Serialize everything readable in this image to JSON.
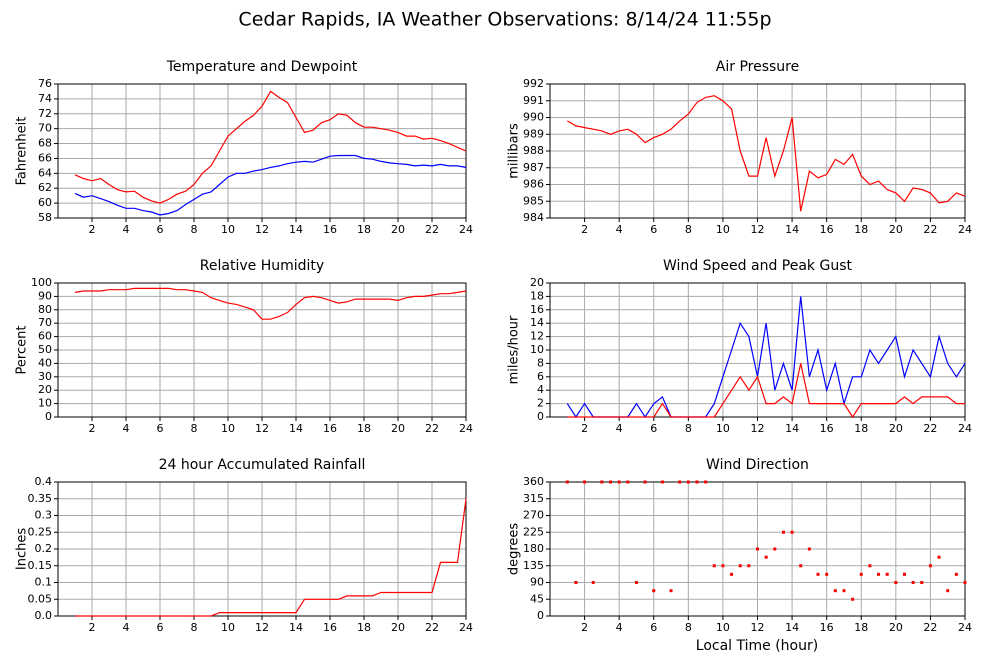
{
  "title": "Cedar Rapids, IA Weather Observations: 8/14/24 11:55p",
  "x_axis_label": "Local Time (hour)",
  "chart_data": [
    {
      "type": "line",
      "title": "Temperature and Dewpoint",
      "y_label": "Fahrenheit",
      "xlim": [
        0,
        24
      ],
      "xticks": [
        2,
        4,
        6,
        8,
        10,
        12,
        14,
        16,
        18,
        20,
        22,
        24
      ],
      "ylim": [
        58,
        76
      ],
      "yticks": [
        58,
        60,
        62,
        64,
        66,
        68,
        70,
        72,
        74,
        76
      ],
      "grid": true,
      "x": [
        1,
        1.5,
        2,
        2.5,
        3,
        3.5,
        4,
        4.5,
        5,
        5.5,
        6,
        6.5,
        7,
        7.5,
        8,
        8.5,
        9,
        9.5,
        10,
        10.5,
        11,
        11.5,
        12,
        12.5,
        13,
        13.5,
        14,
        14.5,
        15,
        15.5,
        16,
        16.5,
        17,
        17.5,
        18,
        18.5,
        19,
        19.5,
        20,
        20.5,
        21,
        21.5,
        22,
        22.5,
        23,
        23.5,
        24
      ],
      "series": [
        {
          "color": "#ff0000",
          "values": [
            63.8,
            63.3,
            63,
            63.3,
            62.5,
            61.8,
            61.5,
            61.6,
            60.8,
            60.3,
            60,
            60.5,
            61.2,
            61.6,
            62.5,
            64,
            65,
            67,
            69,
            70,
            71,
            71.8,
            73,
            75,
            74.2,
            73.5,
            71.5,
            69.5,
            69.8,
            70.8,
            71.2,
            72,
            71.8,
            70.8,
            70.2,
            70.2,
            70,
            69.8,
            69.5,
            69,
            69,
            68.6,
            68.7,
            68.4,
            68,
            67.5,
            67
          ]
        },
        {
          "color": "#0000ff",
          "values": [
            61.3,
            60.8,
            61,
            60.6,
            60.2,
            59.7,
            59.3,
            59.3,
            59,
            58.8,
            58.4,
            58.6,
            59,
            59.8,
            60.5,
            61.2,
            61.5,
            62.5,
            63.5,
            64,
            64,
            64.3,
            64.5,
            64.8,
            65,
            65.3,
            65.5,
            65.6,
            65.5,
            65.9,
            66.3,
            66.4,
            66.4,
            66.4,
            66,
            65.9,
            65.6,
            65.4,
            65.3,
            65.2,
            65,
            65.1,
            65,
            65.2,
            65,
            65,
            64.8
          ]
        }
      ]
    },
    {
      "type": "line",
      "title": "Air Pressure",
      "y_label": "millibars",
      "xlim": [
        0,
        24
      ],
      "xticks": [
        2,
        4,
        6,
        8,
        10,
        12,
        14,
        16,
        18,
        20,
        22,
        24
      ],
      "ylim": [
        984,
        992
      ],
      "yticks": [
        984,
        985,
        986,
        987,
        988,
        989,
        990,
        991,
        992
      ],
      "grid": true,
      "x": [
        1,
        1.5,
        2,
        2.5,
        3,
        3.5,
        4,
        4.5,
        5,
        5.5,
        6,
        6.5,
        7,
        7.5,
        8,
        8.5,
        9,
        9.5,
        10,
        10.5,
        11,
        11.5,
        12,
        12.5,
        13,
        13.5,
        14,
        14.5,
        15,
        15.5,
        16,
        16.5,
        17,
        17.5,
        18,
        18.5,
        19,
        19.5,
        20,
        20.5,
        21,
        21.5,
        22,
        22.5,
        23,
        23.5,
        24
      ],
      "series": [
        {
          "color": "#ff0000",
          "values": [
            989.8,
            989.5,
            989.4,
            989.3,
            989.2,
            989,
            989.2,
            989.3,
            989,
            988.5,
            988.8,
            989,
            989.3,
            989.8,
            990.2,
            990.9,
            991.2,
            991.3,
            991,
            990.5,
            988,
            986.5,
            986.5,
            988.8,
            986.5,
            988,
            990,
            984.4,
            986.8,
            986.4,
            986.6,
            987.5,
            987.2,
            987.8,
            986.5,
            986,
            986.2,
            985.7,
            985.5,
            985,
            985.8,
            985.7,
            985.5,
            984.9,
            985,
            985.5,
            985.3
          ]
        }
      ]
    },
    {
      "type": "line",
      "title": "Relative Humidity",
      "y_label": "Percent",
      "xlim": [
        0,
        24
      ],
      "xticks": [
        2,
        4,
        6,
        8,
        10,
        12,
        14,
        16,
        18,
        20,
        22,
        24
      ],
      "ylim": [
        0,
        100
      ],
      "yticks": [
        0,
        10,
        20,
        30,
        40,
        50,
        60,
        70,
        80,
        90,
        100
      ],
      "grid": true,
      "x": [
        1,
        1.5,
        2,
        2.5,
        3,
        3.5,
        4,
        4.5,
        5,
        5.5,
        6,
        6.5,
        7,
        7.5,
        8,
        8.5,
        9,
        9.5,
        10,
        10.5,
        11,
        11.5,
        12,
        12.5,
        13,
        13.5,
        14,
        14.5,
        15,
        15.5,
        16,
        16.5,
        17,
        17.5,
        18,
        18.5,
        19,
        19.5,
        20,
        20.5,
        21,
        21.5,
        22,
        22.5,
        23,
        23.5,
        24
      ],
      "series": [
        {
          "color": "#ff0000",
          "values": [
            93,
            94,
            94,
            94,
            95,
            95,
            95,
            96,
            96,
            96,
            96,
            96,
            95,
            95,
            94,
            93,
            89,
            87,
            85,
            84,
            82,
            80,
            73,
            73,
            75,
            78,
            84,
            89,
            90,
            89,
            87,
            85,
            86,
            88,
            88,
            88,
            88,
            88,
            87,
            89,
            90,
            90,
            91,
            92,
            92,
            93,
            94
          ]
        }
      ]
    },
    {
      "type": "line",
      "title": "Wind Speed and Peak Gust",
      "y_label": "miles/hour",
      "xlim": [
        0,
        24
      ],
      "xticks": [
        2,
        4,
        6,
        8,
        10,
        12,
        14,
        16,
        18,
        20,
        22,
        24
      ],
      "ylim": [
        0,
        20
      ],
      "yticks": [
        0,
        2,
        4,
        6,
        8,
        10,
        12,
        14,
        16,
        18,
        20
      ],
      "grid": true,
      "x": [
        1,
        1.5,
        2,
        2.5,
        3,
        3.5,
        4,
        4.5,
        5,
        5.5,
        6,
        6.5,
        7,
        7.5,
        8,
        8.5,
        9,
        9.5,
        10,
        10.5,
        11,
        11.5,
        12,
        12.5,
        13,
        13.5,
        14,
        14.5,
        15,
        15.5,
        16,
        16.5,
        17,
        17.5,
        18,
        18.5,
        19,
        19.5,
        20,
        20.5,
        21,
        21.5,
        22,
        22.5,
        23,
        23.5,
        24
      ],
      "series": [
        {
          "color": "#0000ff",
          "values": [
            2,
            0,
            2,
            0,
            0,
            0,
            0,
            0,
            2,
            0,
            2,
            3,
            0,
            0,
            0,
            0,
            0,
            2,
            6,
            10,
            14,
            12,
            6,
            14,
            4,
            8,
            4,
            18,
            6,
            10,
            4,
            8,
            2,
            6,
            6,
            10,
            8,
            10,
            12,
            6,
            10,
            8,
            6,
            12,
            8,
            6,
            8
          ]
        },
        {
          "color": "#ff0000",
          "values": [
            0,
            0,
            0,
            0,
            0,
            0,
            0,
            0,
            0,
            0,
            0,
            2,
            0,
            0,
            0,
            0,
            0,
            0,
            2,
            4,
            6,
            4,
            6,
            2,
            2,
            3,
            2,
            8,
            2,
            2,
            2,
            2,
            2,
            0,
            2,
            2,
            2,
            2,
            2,
            3,
            2,
            3,
            3,
            3,
            3,
            2,
            2
          ]
        }
      ]
    },
    {
      "type": "line",
      "title": "24 hour Accumulated Rainfall",
      "y_label": "Inches",
      "xlim": [
        0,
        24
      ],
      "xticks": [
        2,
        4,
        6,
        8,
        10,
        12,
        14,
        16,
        18,
        20,
        22,
        24
      ],
      "ylim": [
        0,
        0.4
      ],
      "yticks": [
        {
          "value": 0,
          "label": "0.0"
        },
        0.05,
        0.1,
        0.15,
        0.2,
        0.25,
        0.3,
        0.35,
        0.4
      ],
      "grid": true,
      "x": [
        1,
        1.5,
        2,
        2.5,
        3,
        3.5,
        4,
        4.5,
        5,
        5.5,
        6,
        6.5,
        7,
        7.5,
        8,
        8.5,
        9,
        9.5,
        10,
        10.5,
        11,
        11.5,
        12,
        12.5,
        13,
        13.5,
        14,
        14.5,
        15,
        15.5,
        16,
        16.5,
        17,
        17.5,
        18,
        18.5,
        19,
        19.5,
        20,
        20.5,
        21,
        21.5,
        22,
        22.5,
        23,
        23.5,
        24
      ],
      "series": [
        {
          "color": "#ff0000",
          "values": [
            0,
            0,
            0,
            0,
            0,
            0,
            0,
            0,
            0,
            0,
            0,
            0,
            0,
            0,
            0,
            0,
            0,
            0.01,
            0.01,
            0.01,
            0.01,
            0.01,
            0.01,
            0.01,
            0.01,
            0.01,
            0.01,
            0.05,
            0.05,
            0.05,
            0.05,
            0.05,
            0.06,
            0.06,
            0.06,
            0.06,
            0.07,
            0.07,
            0.07,
            0.07,
            0.07,
            0.07,
            0.07,
            0.16,
            0.16,
            0.16,
            0.35
          ]
        }
      ]
    },
    {
      "type": "scatter",
      "title": "Wind Direction",
      "y_label": "degrees",
      "xlim": [
        0,
        24
      ],
      "xticks": [
        2,
        4,
        6,
        8,
        10,
        12,
        14,
        16,
        18,
        20,
        22,
        24
      ],
      "ylim": [
        0,
        360
      ],
      "yticks": [
        0,
        45,
        90,
        135,
        180,
        225,
        270,
        315,
        360
      ],
      "grid": true,
      "x": [
        1,
        1.5,
        2,
        2.5,
        3,
        3.5,
        4,
        4.5,
        5,
        5.5,
        6,
        6.5,
        7,
        7.5,
        8,
        8.5,
        9,
        9.5,
        10,
        10.5,
        11,
        11.5,
        12,
        12.5,
        13,
        13.5,
        14,
        14.5,
        15,
        15.5,
        16,
        16.5,
        17,
        17.5,
        18,
        18.5,
        19,
        19.5,
        20,
        20.5,
        21,
        21.5,
        22,
        22.5,
        23,
        23.5,
        24
      ],
      "series": [
        {
          "color": "#ff0000",
          "values": [
            360,
            90,
            360,
            90,
            360,
            360,
            360,
            360,
            90,
            360,
            68,
            360,
            68,
            360,
            360,
            360,
            360,
            135,
            135,
            112,
            135,
            135,
            180,
            158,
            180,
            225,
            225,
            135,
            180,
            112,
            112,
            68,
            68,
            45,
            112,
            135,
            112,
            112,
            90,
            112,
            90,
            90,
            135,
            158,
            68,
            112,
            90
          ]
        }
      ]
    }
  ]
}
